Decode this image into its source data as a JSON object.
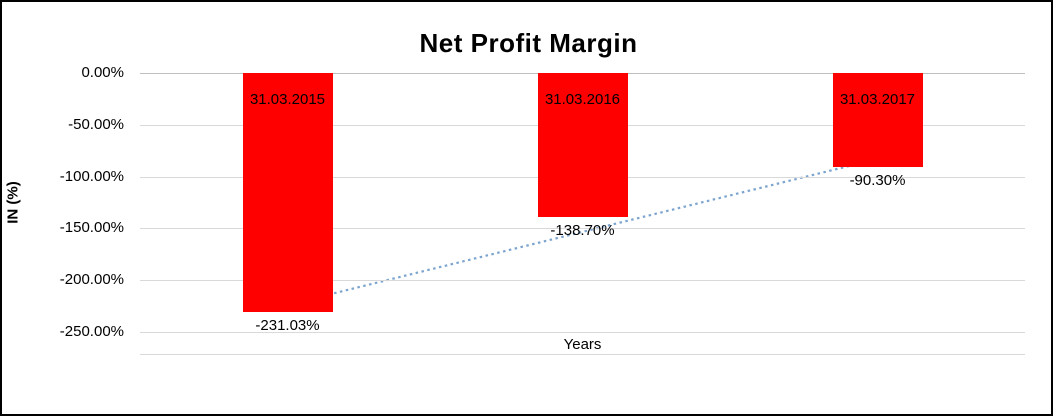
{
  "chart_data": {
    "type": "bar",
    "title": "Net Profit Margin",
    "xlabel": "Years",
    "ylabel": "IN (%)",
    "categories": [
      "31.03.2015",
      "31.03.2016",
      "31.03.2017"
    ],
    "values": [
      -231.03,
      -138.7,
      -90.3
    ],
    "data_labels": [
      "-231.03%",
      "-138.70%",
      "-90.30%"
    ],
    "ylim": [
      -250,
      0
    ],
    "ytick_step": 50,
    "ytick_labels": [
      "0.00%",
      "-50.00%",
      "-100.00%",
      "-150.00%",
      "-200.00%",
      "-250.00%"
    ],
    "grid": true,
    "legend": false,
    "bar_color": "#ff0000",
    "trendline": {
      "style": "dotted",
      "color": "#7ba4cf",
      "start_value": -223.7,
      "end_value": -83.0
    }
  }
}
